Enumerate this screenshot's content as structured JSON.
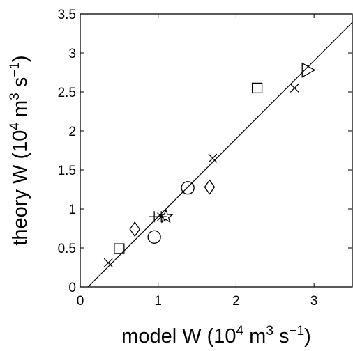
{
  "chart_data": {
    "type": "scatter",
    "title": "",
    "xlabel": {
      "prefix": "model W (10",
      "exp": "4",
      "mid": " m",
      "exp2": "3",
      "mid2": " s",
      "exp3": "−1",
      "suffix": ")"
    },
    "ylabel": {
      "prefix": "theory W (10",
      "exp": "4",
      "mid": " m",
      "exp2": "3",
      "mid2": " s",
      "exp3": "−1",
      "suffix": ")"
    },
    "xlim": [
      0,
      3.5
    ],
    "ylim": [
      0,
      3.5
    ],
    "xticks": [
      {
        "value": 0,
        "label": "0"
      },
      {
        "value": 1,
        "label": "1"
      },
      {
        "value": 2,
        "label": "2"
      },
      {
        "value": 3,
        "label": "3"
      }
    ],
    "yticks": [
      {
        "value": 0,
        "label": "0"
      },
      {
        "value": 0.5,
        "label": "0.5"
      },
      {
        "value": 1,
        "label": "1"
      },
      {
        "value": 1.5,
        "label": "1.5"
      },
      {
        "value": 2,
        "label": "2"
      },
      {
        "value": 2.5,
        "label": "2.5"
      },
      {
        "value": 3,
        "label": "3"
      },
      {
        "value": 3.5,
        "label": "3.5"
      }
    ],
    "grid": false,
    "fit_line": {
      "x": [
        0.1,
        3.5
      ],
      "y": [
        0,
        3.4
      ]
    },
    "points": [
      {
        "marker": "x",
        "x": 0.36,
        "y": 0.31
      },
      {
        "marker": "square",
        "x": 0.5,
        "y": 0.49
      },
      {
        "marker": "diamond",
        "x": 0.7,
        "y": 0.74
      },
      {
        "marker": "circle",
        "x": 0.95,
        "y": 0.64
      },
      {
        "marker": "plus",
        "x": 0.95,
        "y": 0.9
      },
      {
        "marker": "asterisk",
        "x": 1.04,
        "y": 0.9
      },
      {
        "marker": "star",
        "x": 1.1,
        "y": 0.9
      },
      {
        "marker": "circle",
        "x": 1.38,
        "y": 1.27
      },
      {
        "marker": "diamond",
        "x": 1.66,
        "y": 1.28
      },
      {
        "marker": "x",
        "x": 1.7,
        "y": 1.65
      },
      {
        "marker": "square",
        "x": 2.27,
        "y": 2.55
      },
      {
        "marker": "x",
        "x": 2.75,
        "y": 2.55
      },
      {
        "marker": "triangle-right",
        "x": 2.92,
        "y": 2.78
      }
    ]
  }
}
